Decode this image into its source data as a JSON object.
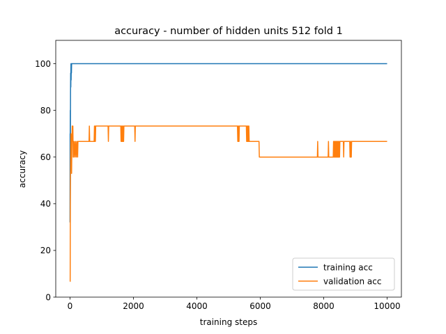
{
  "chart_data": {
    "type": "line",
    "title": "accuracy - number of hidden units 512 fold 1",
    "xlabel": "training steps",
    "ylabel": "accuracy",
    "xlim": [
      -450,
      10450
    ],
    "ylim": [
      0,
      110
    ],
    "xticks": [
      0,
      2000,
      4000,
      6000,
      8000,
      10000
    ],
    "xtick_labels": [
      "0",
      "2000",
      "4000",
      "6000",
      "8000",
      "10000"
    ],
    "yticks": [
      0,
      20,
      40,
      60,
      80,
      100
    ],
    "ytick_labels": [
      "0",
      "20",
      "40",
      "60",
      "80",
      "100"
    ],
    "grid": false,
    "legend_position": "lower-right",
    "series": [
      {
        "name": "training acc",
        "color": "#1f77b4",
        "x": [
          0,
          3,
          6,
          9,
          12,
          16,
          20,
          25,
          30,
          35,
          40,
          45,
          50,
          60,
          10000
        ],
        "y": [
          32,
          70,
          66,
          80,
          68,
          88,
          96,
          90,
          100,
          93,
          100,
          96,
          100,
          100,
          100
        ]
      },
      {
        "name": "validation acc",
        "color": "#ff7f0e",
        "x": [
          0,
          5,
          10,
          15,
          20,
          25,
          30,
          35,
          40,
          50,
          60,
          70,
          80,
          90,
          100,
          110,
          120,
          140,
          160,
          180,
          200,
          220,
          240,
          250,
          260,
          600,
          610,
          620,
          630,
          760,
          770,
          780,
          790,
          800,
          810,
          820,
          1200,
          1210,
          1220,
          1230,
          1600,
          1610,
          1620,
          1630,
          1640,
          1650,
          1660,
          1670,
          1680,
          1690,
          1700,
          1710,
          1720,
          2040,
          2050,
          2060,
          2070,
          5280,
          5290,
          5300,
          5310,
          5320,
          5330,
          5340,
          5350,
          5560,
          5570,
          5580,
          5590,
          5600,
          5610,
          5620,
          5630,
          5640,
          5650,
          5660,
          5670,
          5960,
          5970,
          5980,
          7800,
          7810,
          7820,
          7830,
          8140,
          8150,
          8160,
          8170,
          8300,
          8310,
          8320,
          8330,
          8340,
          8350,
          8360,
          8370,
          8380,
          8390,
          8400,
          8410,
          8420,
          8430,
          8440,
          8450,
          8460,
          8470,
          8480,
          8490,
          8500,
          8510,
          8520,
          8620,
          8630,
          8640,
          8650,
          8820,
          8830,
          8840,
          8850,
          8860,
          8870,
          8880,
          10000
        ],
        "y": [
          6.7,
          6.7,
          40,
          53,
          60,
          66.7,
          70,
          60,
          66.7,
          53,
          66.7,
          73.3,
          66.7,
          73.3,
          60,
          66.7,
          60,
          66.7,
          60,
          66.7,
          60,
          66.7,
          60,
          66.7,
          66.7,
          66.7,
          73.3,
          66.7,
          66.7,
          66.7,
          73.3,
          66.7,
          73.3,
          66.7,
          73.3,
          73.3,
          73.3,
          66.7,
          73.3,
          73.3,
          73.3,
          66.7,
          73.3,
          66.7,
          73.3,
          66.7,
          73.3,
          66.7,
          73.3,
          66.7,
          73.3,
          73.3,
          73.3,
          73.3,
          66.7,
          73.3,
          73.3,
          73.3,
          66.7,
          73.3,
          66.7,
          73.3,
          66.7,
          73.3,
          73.3,
          73.3,
          66.7,
          73.3,
          66.7,
          73.3,
          66.7,
          73.3,
          66.7,
          73.3,
          66.7,
          66.7,
          66.7,
          66.7,
          60,
          60,
          60,
          66.7,
          60,
          60,
          60,
          66.7,
          60,
          60,
          60,
          66.7,
          60,
          66.7,
          60,
          66.7,
          60,
          66.7,
          60,
          66.7,
          60,
          66.7,
          60,
          66.7,
          60,
          66.7,
          60,
          66.7,
          60,
          66.7,
          60,
          66.7,
          66.7,
          66.7,
          60,
          66.7,
          66.7,
          66.7,
          60,
          66.7,
          60,
          66.7,
          60,
          66.7,
          66.7
        ]
      }
    ]
  }
}
